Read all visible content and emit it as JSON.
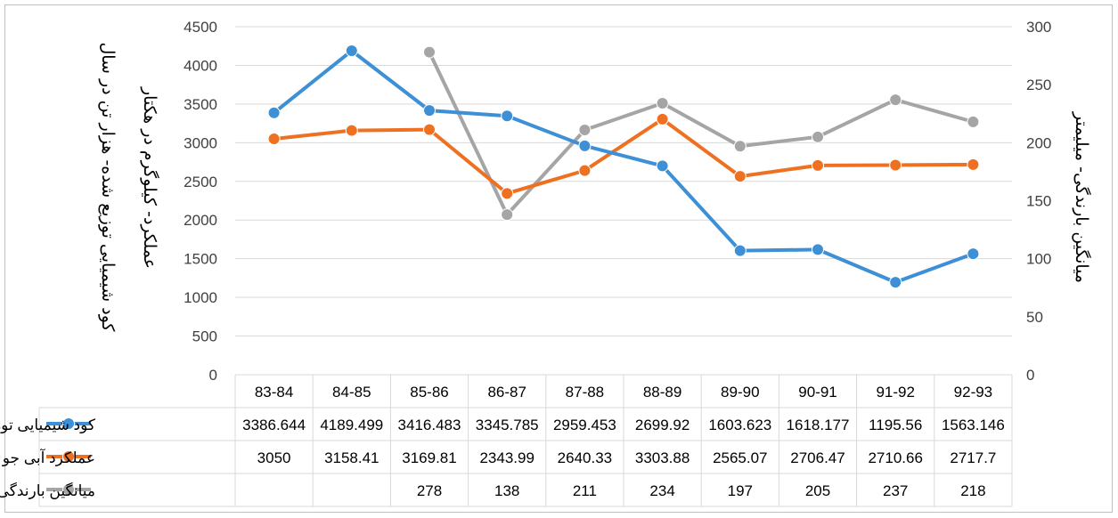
{
  "chart_data": {
    "type": "line",
    "categories": [
      "83-84",
      "84-85",
      "85-86",
      "86-87",
      "87-88",
      "88-89",
      "89-90",
      "90-91",
      "91-92",
      "92-93"
    ],
    "series": [
      {
        "name": "کود شیمیایی توزیع شده",
        "axis": "left",
        "color": "#3d8fd6",
        "values": [
          3386.644,
          4189.499,
          3416.483,
          3345.785,
          2959.453,
          2699.92,
          1603.623,
          1618.177,
          1195.56,
          1563.146
        ],
        "table_values": [
          "3386.644",
          "4189.499",
          "3416.483",
          "3345.785",
          "2959.453",
          "2699.92",
          "1603.623",
          "1618.177",
          "1195.56",
          "1563.146"
        ]
      },
      {
        "name": "عملکرد آبی جو",
        "axis": "left",
        "color": "#ee7122",
        "values": [
          3050,
          3158.41,
          3169.81,
          2343.99,
          2640.33,
          3303.88,
          2565.07,
          2706.47,
          2710.66,
          2717.7
        ],
        "table_values": [
          "3050",
          "3158.41",
          "3169.81",
          "2343.99",
          "2640.33",
          "3303.88",
          "2565.07",
          "2706.47",
          "2710.66",
          "2717.7"
        ]
      },
      {
        "name": "میانگین بارندگی",
        "axis": "right",
        "color": "#a5a5a5",
        "values": [
          null,
          null,
          278,
          138,
          211,
          234,
          197,
          205,
          237,
          218
        ],
        "table_values": [
          "",
          "",
          "278",
          "138",
          "211",
          "234",
          "197",
          "205",
          "237",
          "218"
        ]
      }
    ],
    "y_left": {
      "min": 0,
      "max": 4500,
      "step": 500,
      "ticks": [
        "0",
        "500",
        "1000",
        "1500",
        "2000",
        "2500",
        "3000",
        "3500",
        "4000",
        "4500"
      ]
    },
    "y_right": {
      "min": 0,
      "max": 300,
      "step": 50,
      "ticks": [
        "0",
        "50",
        "100",
        "150",
        "200",
        "250",
        "300"
      ]
    },
    "ylabel_left_1": "کود شیمیایی توزیع شده- هزار تن در سال",
    "ylabel_left_2": "عملکرد- کیلوگرم در هکتار",
    "ylabel_right": "میانگین بارندگی- میلیمتر",
    "grid": true,
    "legend": "data-table"
  }
}
